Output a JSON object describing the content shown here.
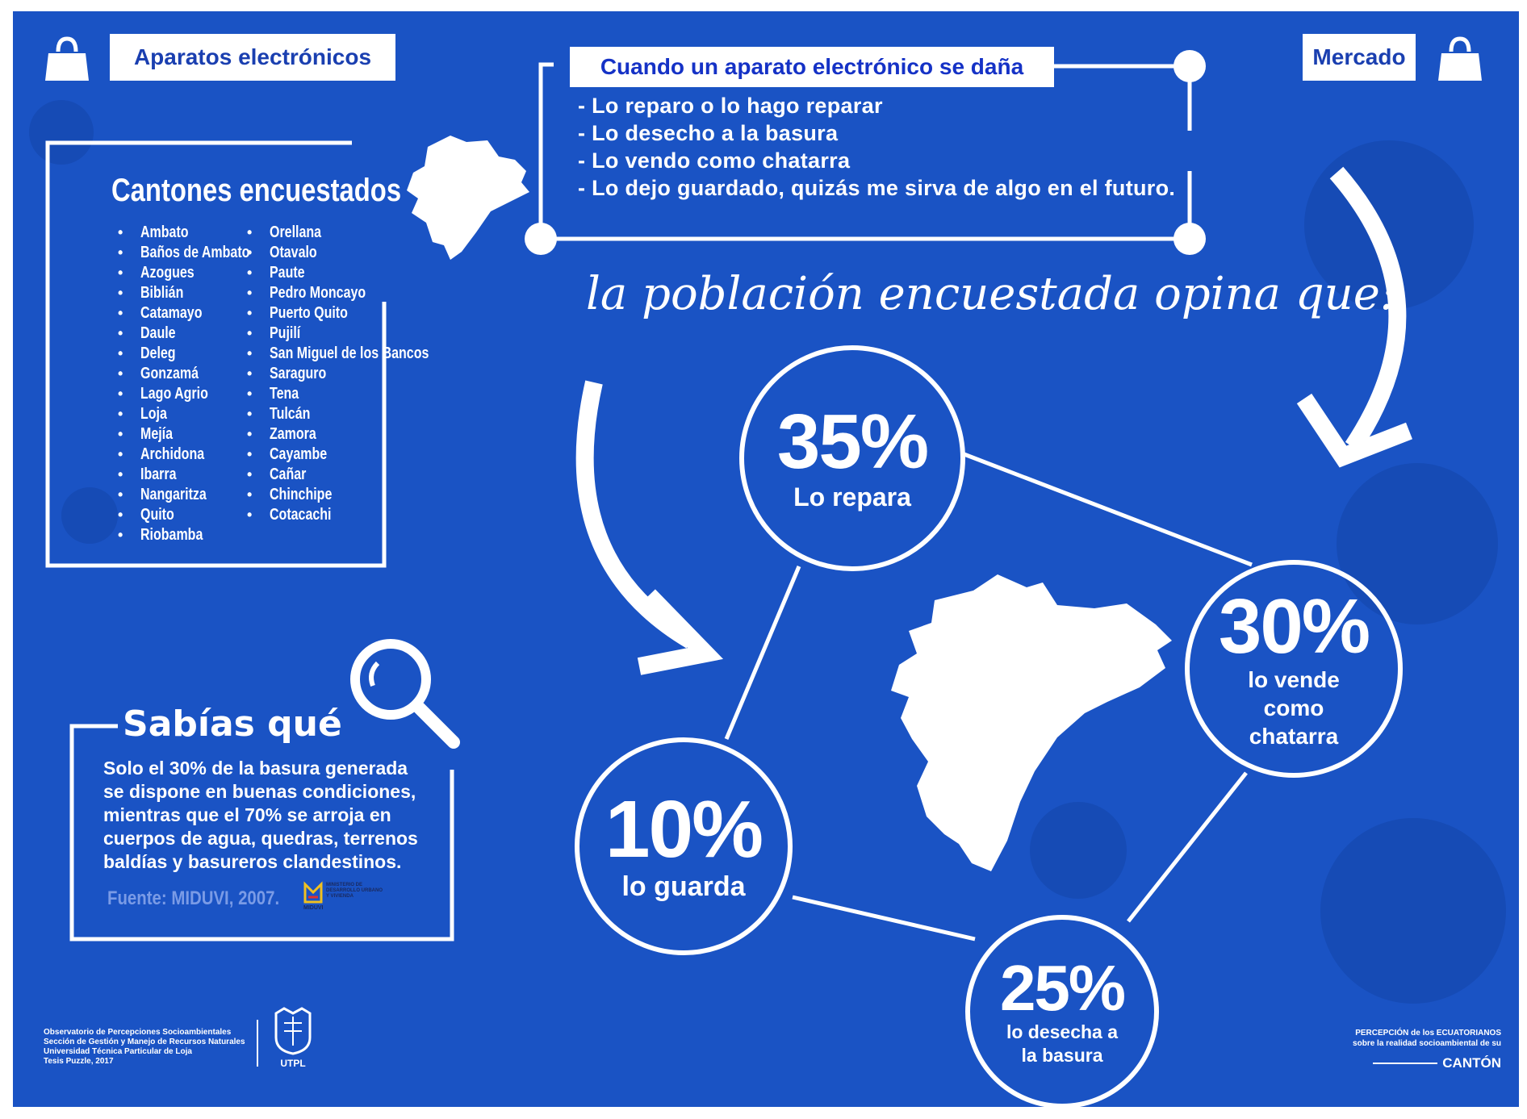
{
  "colors": {
    "background": "#1a53c4",
    "accent_text": "#1a3fb0",
    "white": "#ffffff"
  },
  "top_left_tag": {
    "icon": "shopping-bag-icon",
    "label": "Aparatos electrónicos"
  },
  "top_right_tag": {
    "icon": "shopping-bag-icon",
    "label": "Mercado"
  },
  "damage_box": {
    "title": "Cuando un aparato electrónico se daña",
    "options": [
      "- Lo reparo o lo hago reparar",
      "- Lo desecho a la basura",
      "- Lo vendo como chatarra",
      "- Lo dejo guardado, quizás me sirva de algo en el futuro."
    ]
  },
  "cantones": {
    "title": "Cantones encuestados",
    "column1": [
      "Ambato",
      "Baños de Ambato",
      "Azogues",
      "Biblián",
      "Catamayo",
      "Daule",
      "Deleg",
      "Gonzamá",
      "Lago Agrio",
      "Loja",
      "Mejía",
      "Archidona",
      "Ibarra",
      "Nangaritza",
      "Quito",
      "Riobamba"
    ],
    "column2": [
      "Orellana",
      "Otavalo",
      "Paute",
      "Pedro Moncayo",
      "Puerto Quito",
      "Pujilí",
      "San Miguel de los Bancos",
      "Saraguro",
      "Tena",
      "Tulcán",
      "Zamora",
      "Cayambe",
      "Cañar",
      "Chinchipe",
      "Cotacachi"
    ]
  },
  "headline": "la población encuestada opina que:",
  "stats": [
    {
      "percent": "35%",
      "label": "Lo repara",
      "value": 35
    },
    {
      "percent": "30%",
      "label": "lo vende como chatarra",
      "value": 30
    },
    {
      "percent": "25%",
      "label": "lo desecha a la basura",
      "value": 25
    },
    {
      "percent": "10%",
      "label": "lo guarda",
      "value": 10
    }
  ],
  "sabias": {
    "title": "Sabías qué",
    "text": "Solo el 30% de la basura generada se dispone en buenas condiciones, mientras que el 70% se arroja en cuerpos de agua, quedras, terrenos baldías y basureros clandestinos.",
    "source": "Fuente: MIDUVI, 2007.",
    "logo_text": "MINISTERIO DE DESARROLLO URBANO Y VIVIENDA",
    "logo_name": "MIDUVI"
  },
  "footer": {
    "lines": [
      "Observatorio de Percepciones Socioambientales",
      "Sección de Gestión y Manejo de Recursos Naturales",
      "Universidad Técnica Particular de Loja",
      "Tesis Puzzle, 2017"
    ],
    "utpl": "UTPL",
    "brand_line1": "PERCEPCIÓN de los ECUATORIANOS",
    "brand_line2": "sobre la realidad socioambiental de su",
    "brand_line3": "CANTÓN"
  }
}
